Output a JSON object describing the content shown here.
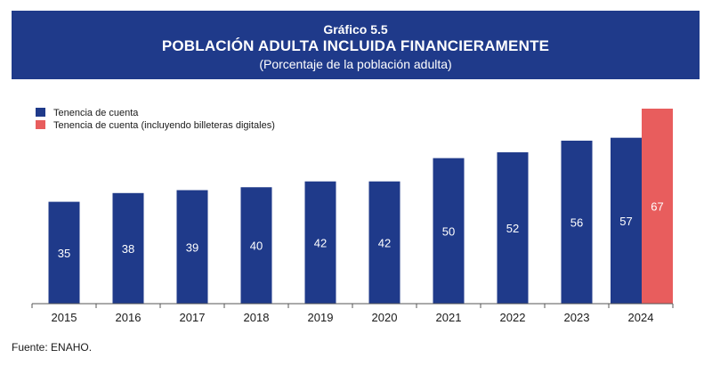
{
  "header": {
    "label": "Gráfico 5.5",
    "title": "POBLACIÓN ADULTA INCLUIDA FINANCIERAMENTE",
    "subtitle": "(Porcentaje de la población adulta)"
  },
  "source": "Fuente: ENAHO.",
  "colors": {
    "header_bg": "#1f3a8a",
    "series1": "#1f3a8a",
    "series2": "#e85d5d"
  },
  "chart_data": {
    "type": "bar",
    "categories": [
      "2015",
      "2016",
      "2017",
      "2018",
      "2019",
      "2020",
      "2021",
      "2022",
      "2023",
      "2024"
    ],
    "series": [
      {
        "name": "Tenencia de cuenta",
        "values": [
          35,
          38,
          39,
          40,
          42,
          42,
          50,
          52,
          56,
          57
        ]
      },
      {
        "name": "Tenencia de cuenta (incluyendo billeteras digitales)",
        "values": [
          null,
          null,
          null,
          null,
          null,
          null,
          null,
          null,
          null,
          67
        ]
      }
    ],
    "legend_position": "top-left",
    "data_labels": true,
    "grid": false,
    "ylim": [
      0,
      67
    ]
  }
}
